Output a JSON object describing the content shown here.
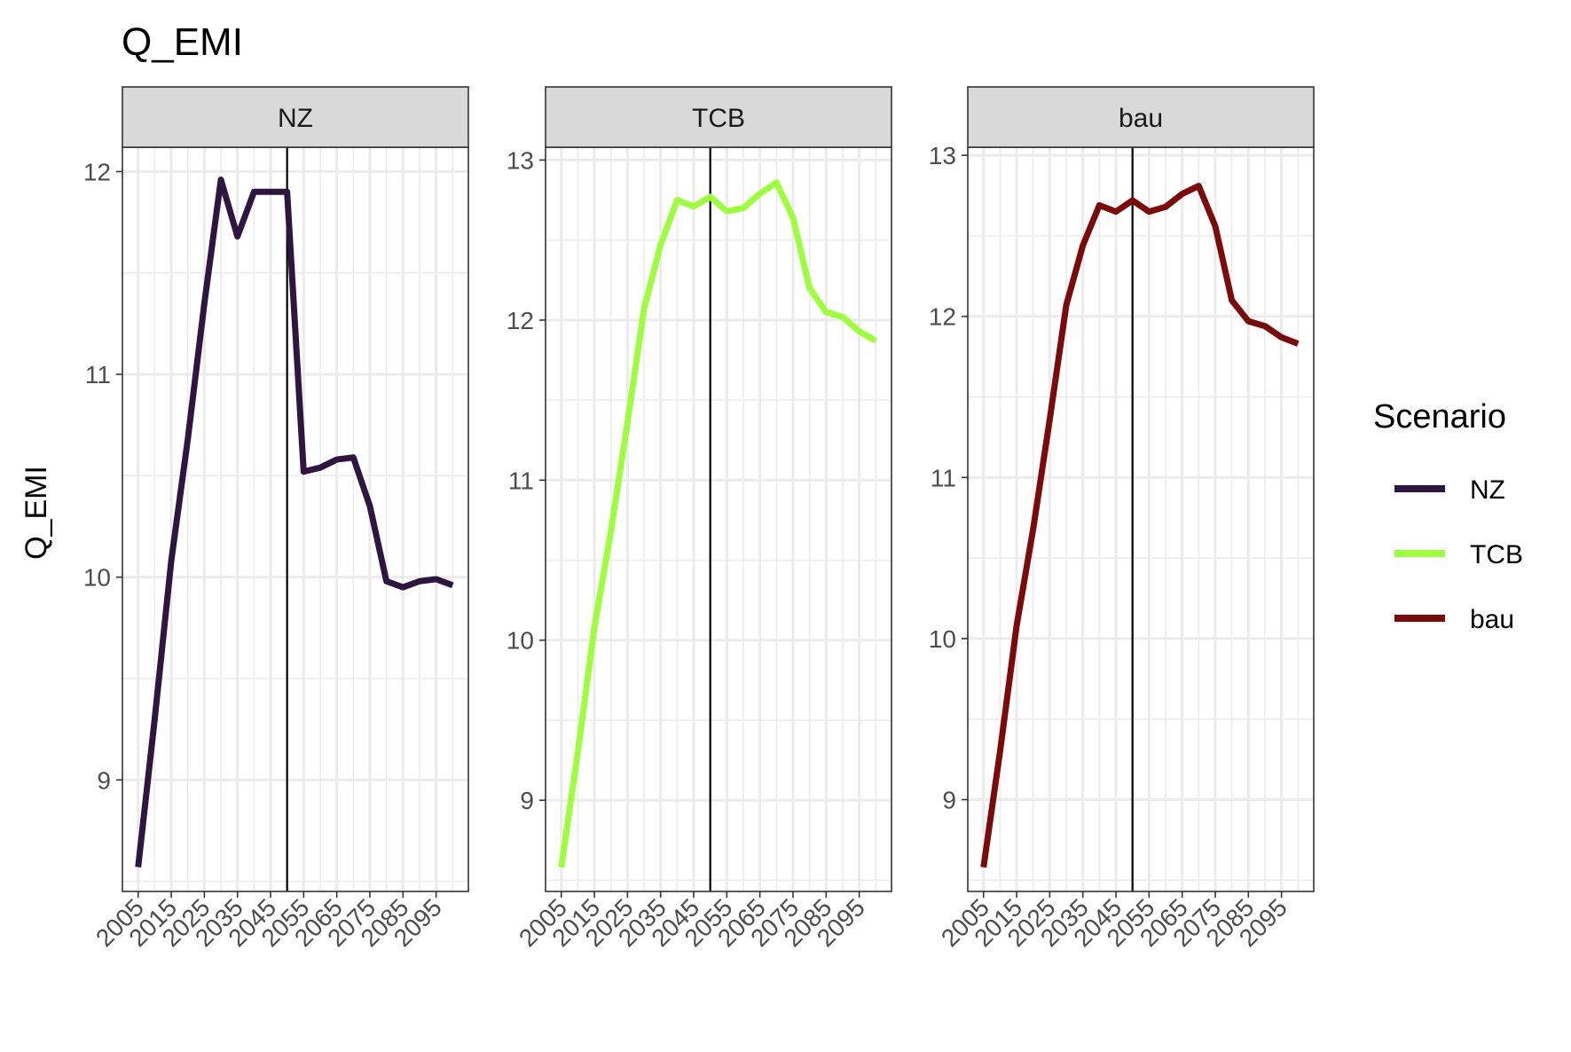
{
  "chart_data": {
    "type": "line",
    "title": "Q_EMI",
    "xlabel": "",
    "ylabel": "Q_EMI",
    "x": [
      2005,
      2010,
      2015,
      2020,
      2025,
      2030,
      2035,
      2040,
      2045,
      2050,
      2055,
      2060,
      2065,
      2070,
      2075,
      2080,
      2085,
      2090,
      2095,
      2100
    ],
    "x_tick_labels": [
      "2005",
      "2015",
      "2025",
      "2035",
      "2045",
      "2055",
      "2065",
      "2075",
      "2085",
      "2095"
    ],
    "x_ticks": [
      2005,
      2015,
      2025,
      2035,
      2045,
      2055,
      2065,
      2075,
      2085,
      2095
    ],
    "vline_x": 2050,
    "grid": true,
    "legend_position": "right",
    "legend_title": "Scenario",
    "series": [
      {
        "name": "NZ",
        "color": "#2d1640",
        "values": [
          8.57,
          9.3,
          10.08,
          10.68,
          11.35,
          11.96,
          11.68,
          11.9,
          11.9,
          11.9,
          10.52,
          10.54,
          10.58,
          10.59,
          10.35,
          9.98,
          9.95,
          9.98,
          9.99,
          9.96
        ]
      },
      {
        "name": "TCB",
        "color": "#9dff3c",
        "values": [
          8.58,
          9.3,
          10.08,
          10.68,
          11.36,
          12.07,
          12.47,
          12.75,
          12.71,
          12.77,
          12.68,
          12.7,
          12.79,
          12.86,
          12.64,
          12.2,
          12.05,
          12.02,
          11.93,
          11.87
        ]
      },
      {
        "name": "bau",
        "color": "#7d0a0a",
        "values": [
          8.58,
          9.3,
          10.08,
          10.68,
          11.36,
          12.07,
          12.44,
          12.69,
          12.65,
          12.72,
          12.65,
          12.68,
          12.76,
          12.81,
          12.56,
          12.1,
          11.97,
          11.94,
          11.87,
          11.83
        ]
      }
    ],
    "panels": [
      {
        "strip": "NZ",
        "series_index": 0,
        "ylim": [
          8.45,
          12.12
        ],
        "yticks": [
          9,
          10,
          11,
          12
        ],
        "ytick_labels": [
          "9",
          "10",
          "11",
          "12"
        ]
      },
      {
        "strip": "TCB",
        "series_index": 1,
        "ylim": [
          8.43,
          13.08
        ],
        "yticks": [
          9,
          10,
          11,
          12,
          13
        ],
        "ytick_labels": [
          "9",
          "10",
          "11",
          "12",
          "13"
        ]
      },
      {
        "strip": "bau",
        "series_index": 2,
        "ylim": [
          8.43,
          13.05
        ],
        "yticks": [
          9,
          10,
          11,
          12,
          13
        ],
        "ytick_labels": [
          "9",
          "10",
          "11",
          "12",
          "13"
        ]
      }
    ]
  }
}
